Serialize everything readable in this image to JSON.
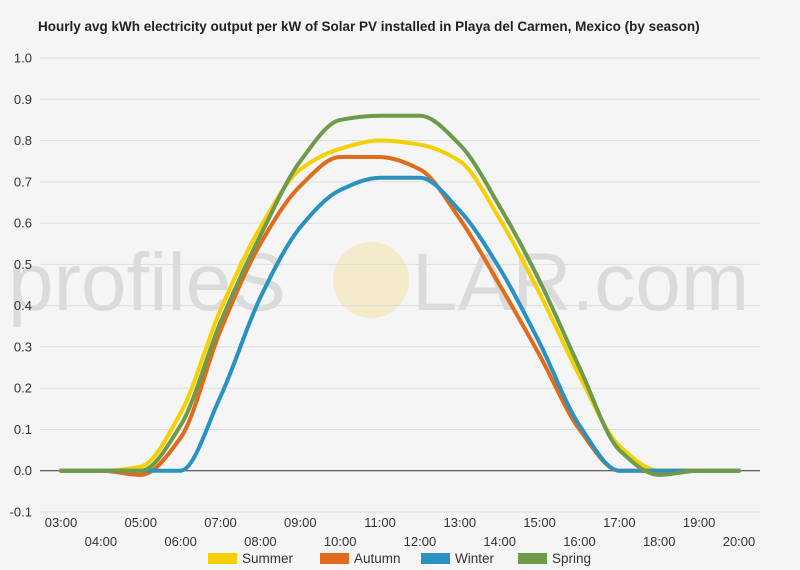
{
  "watermark": {
    "text_left": "profileS",
    "text_right": "LAR.com"
  },
  "chart_data": {
    "type": "line",
    "title": "Hourly avg kWh electricity output per kW of Solar PV installed in Playa del Carmen, Mexico (by season)",
    "xlabel": "",
    "ylabel": "",
    "ylim": [
      -0.1,
      1.0
    ],
    "yticks": [
      "-0.1",
      "0.0",
      "0.1",
      "0.2",
      "0.3",
      "0.4",
      "0.5",
      "0.6",
      "0.7",
      "0.8",
      "0.9",
      "1.0"
    ],
    "x": [
      "03:00",
      "04:00",
      "05:00",
      "06:00",
      "07:00",
      "08:00",
      "09:00",
      "10:00",
      "11:00",
      "12:00",
      "13:00",
      "14:00",
      "15:00",
      "16:00",
      "17:00",
      "18:00",
      "19:00",
      "20:00"
    ],
    "grid": true,
    "legend_position": "bottom",
    "series": [
      {
        "name": "Summer",
        "color": "#f5d000",
        "values": [
          0.0,
          0.0,
          0.01,
          0.14,
          0.39,
          0.59,
          0.73,
          0.78,
          0.8,
          0.79,
          0.75,
          0.61,
          0.43,
          0.23,
          0.06,
          0.0,
          0.0,
          0.0
        ]
      },
      {
        "name": "Autumn",
        "color": "#e06b1c",
        "values": [
          0.0,
          0.0,
          -0.01,
          0.08,
          0.34,
          0.55,
          0.69,
          0.76,
          0.76,
          0.73,
          0.61,
          0.45,
          0.28,
          0.1,
          0.0,
          0.0,
          0.0,
          0.0
        ]
      },
      {
        "name": "Winter",
        "color": "#2a92c0",
        "values": [
          0.0,
          0.0,
          0.0,
          0.0,
          0.18,
          0.42,
          0.59,
          0.68,
          0.71,
          0.71,
          0.63,
          0.49,
          0.31,
          0.11,
          0.0,
          0.0,
          0.0,
          0.0
        ]
      },
      {
        "name": "Spring",
        "color": "#6f9a4c",
        "values": [
          0.0,
          0.0,
          0.0,
          0.11,
          0.36,
          0.57,
          0.75,
          0.85,
          0.86,
          0.86,
          0.79,
          0.64,
          0.46,
          0.25,
          0.05,
          -0.01,
          0.0,
          0.0
        ]
      }
    ]
  }
}
